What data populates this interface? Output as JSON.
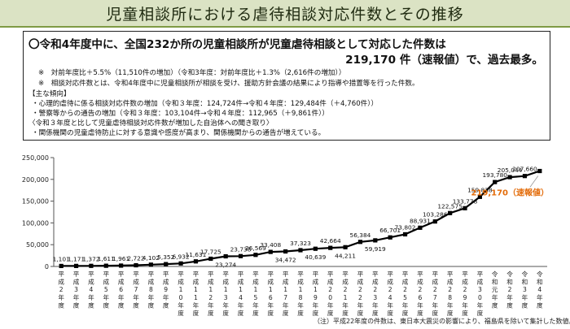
{
  "header": {
    "title": "児童相談所における虐待相談対応件数とその推移"
  },
  "summary": {
    "line1": "〇令和4年度中に、全国232か所の児童相談所が児童虐待相談として対応した件数は",
    "line2": "219,170 件（速報値）で、過去最多。",
    "note1": "※　対前年度比＋5.5%（11,510件の増加）（令和3年度：対前年度比＋1.3%（2,616件の増加））",
    "note2": "※　相談対応件数とは、令和4年度中に児童相談所が相談を受け、援助方針会議の結果により指導や措置等を行った件数。",
    "trend_header": "【主な傾向】",
    "trend1": "・心理的虐待に係る相談対応件数の増加（令和３年度：124,724件→令和４年度：129,484件（＋4,760件））",
    "trend2": "・警察等からの通告の増加（令和３年度：103,104件→令和４年度：112,965（＋9,861件））",
    "sub_header": "〈令和３年度と比して児童虐待相談対応件数が増加した自治体への聞き取り〉",
    "sub1": "・関係機関の児童虐待防止に対する意識や感度が高まり、関係機関からの通告が増えている。"
  },
  "chart_data": {
    "type": "line",
    "title": "",
    "xlabel": "",
    "ylabel": "",
    "ylim": [
      0,
      250000
    ],
    "yticks": [
      "0",
      "50,000",
      "100,000",
      "150,000",
      "200,000",
      "250,000"
    ],
    "grid": false,
    "categories": [
      "平成2年度",
      "平成3年度",
      "平成4年度",
      "平成5年度",
      "平成6年度",
      "平成7年度",
      "平成8年度",
      "平成9年度",
      "平成10年度",
      "平成11年度",
      "平成12年度",
      "平成13年度",
      "平成14年度",
      "平成15年度",
      "平成16年度",
      "平成17年度",
      "平成18年度",
      "平成19年度",
      "平成20年度",
      "平成21年度",
      "平成22年度",
      "平成23年度",
      "平成24年度",
      "平成25年度",
      "平成26年度",
      "平成27年度",
      "平成28年度",
      "平成29年度",
      "平成30年度",
      "令和元年度",
      "令和2年度",
      "令和3年度",
      "令和4年度"
    ],
    "values": [
      1101,
      1171,
      1372,
      1611,
      1961,
      2722,
      4102,
      5352,
      6932,
      11631,
      17725,
      23274,
      23738,
      26569,
      33408,
      34472,
      37323,
      40639,
      42664,
      44211,
      56384,
      59919,
      66701,
      73802,
      88931,
      103286,
      122575,
      133778,
      159838,
      193780,
      205044,
      207660,
      219170
    ],
    "value_labels": [
      "1,101",
      "1,171",
      "1,372",
      "1,611",
      "1,961",
      "2,722",
      "4,102",
      "5,352",
      "6,932",
      "11,631",
      "17,725",
      "23,274",
      "23,738",
      "26,569",
      "33,408",
      "34,472",
      "37,323",
      "40,639",
      "42,664",
      "44,211",
      "56,384",
      "59,919",
      "66,701",
      "73,802",
      "88,931",
      "103,286",
      "122,575",
      "133,778",
      "159,838",
      "193,780",
      "205,044",
      "207,660",
      ""
    ],
    "callout": "219,170（速報値）",
    "callout_color": "#e36c0a",
    "line_color": "#000000"
  },
  "footnote": "（注）平成22年度の件数は、東日本大震災の影響により、福島県を除いて集計した数値。"
}
